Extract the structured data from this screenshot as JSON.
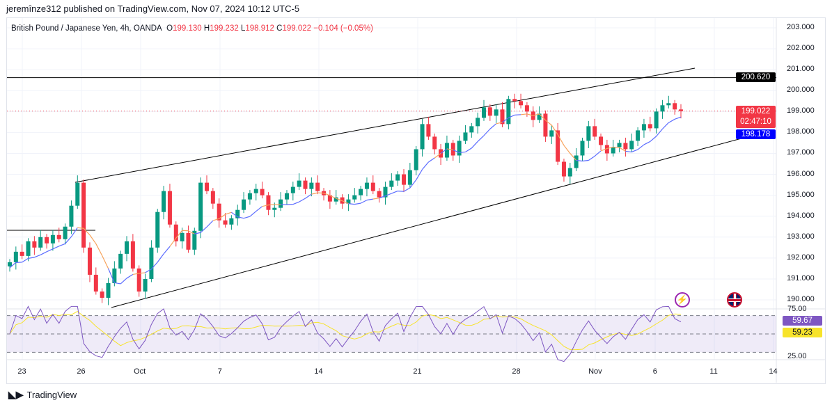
{
  "header": {
    "published": "jeremînze312 published on TradingView.com, Nov 07, 2024 10:12 UTC-5"
  },
  "legend": {
    "symbol": "British Pound / Japanese Yen, 4h, OANDA",
    "o_label": "O",
    "o": "199.130",
    "h_label": "H",
    "h": "199.232",
    "l_label": "L",
    "l": "198.912",
    "c_label": "C",
    "c": "199.022",
    "change": "−0.104 (−0.05%)"
  },
  "price_axis": [
    "203.000",
    "202.000",
    "201.000",
    "200.000",
    "199.000",
    "198.000",
    "197.000",
    "196.000",
    "195.000",
    "194.000",
    "193.000",
    "192.000",
    "191.000",
    "190.000"
  ],
  "tags": {
    "level": "200.620",
    "last": "199.022",
    "countdown": "02:47:10",
    "ma": "198.178",
    "rsi": "59.67",
    "rsi_ma": "59.23"
  },
  "rsi_axis": [
    "75.00",
    "25.00"
  ],
  "time_axis": [
    "23",
    "26",
    "Oct",
    "7",
    "14",
    "21",
    "28",
    "Nov",
    "6",
    "11",
    "14"
  ],
  "footer": {
    "brand": "TradingView"
  },
  "colors": {
    "up": "#089981",
    "down": "#f23645",
    "ma_up": "#5b6cff",
    "ma_down": "#f7a35c",
    "rsi": "#7e57c2",
    "rsi_ma": "#f7e32a",
    "level_tag": "#000000",
    "last_tag": "#f23645",
    "ma_tag": "#0000ff"
  },
  "chart_data": {
    "type": "candlestick",
    "price_range": [
      190,
      203
    ],
    "closes": [
      191.8,
      192.3,
      192.1,
      192.8,
      192.5,
      193.0,
      192.7,
      193.1,
      192.9,
      193.5,
      194.5,
      195.6,
      192.5,
      191.2,
      190.4,
      190.1,
      190.8,
      191.5,
      192.2,
      192.8,
      191.5,
      190.4,
      191.0,
      192.5,
      194.2,
      195.2,
      193.6,
      192.8,
      193.2,
      192.4,
      193.3,
      195.6,
      195.2,
      194.6,
      193.8,
      193.6,
      193.9,
      194.3,
      194.8,
      195.1,
      195.3,
      195.0,
      194.3,
      194.4,
      194.8,
      195.1,
      195.4,
      195.7,
      195.3,
      195.6,
      195.2,
      195.0,
      194.7,
      194.9,
      194.6,
      194.8,
      195.0,
      195.3,
      195.6,
      195.2,
      194.9,
      195.4,
      195.7,
      196.0,
      195.5,
      196.2,
      197.2,
      198.4,
      197.8,
      197.2,
      196.8,
      197.5,
      196.9,
      197.6,
      198.0,
      198.3,
      198.7,
      199.2,
      198.8,
      199.1,
      198.4,
      199.6,
      199.5,
      199.3,
      199.0,
      198.6,
      198.9,
      197.8,
      198.1,
      196.6,
      195.9,
      196.3,
      196.9,
      197.6,
      198.3,
      197.8,
      197.4,
      197.0,
      197.3,
      197.5,
      197.2,
      197.6,
      198.1,
      198.4,
      198.2,
      199.0,
      199.3,
      199.4,
      199.1,
      199.022
    ]
  }
}
